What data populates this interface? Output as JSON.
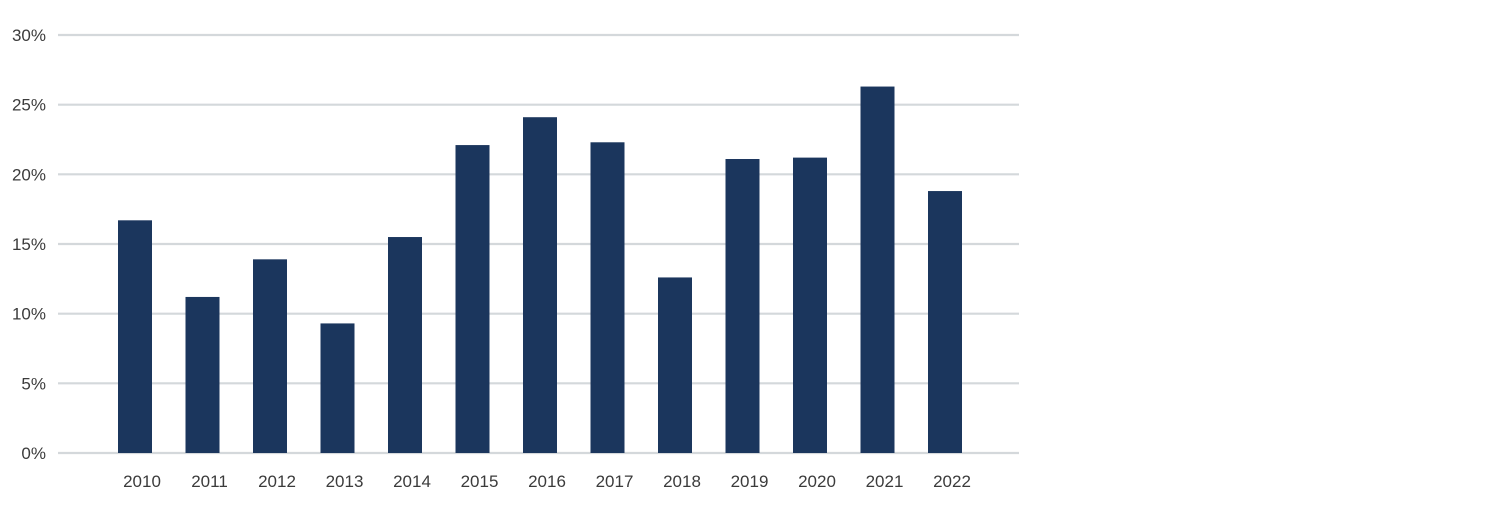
{
  "chart_data": {
    "type": "bar",
    "categories": [
      "2010",
      "2011",
      "2012",
      "2013",
      "2014",
      "2015",
      "2016",
      "2017",
      "2018",
      "2019",
      "2020",
      "2021",
      "2022"
    ],
    "values": [
      16.7,
      11.2,
      13.9,
      9.3,
      15.5,
      22.1,
      24.1,
      22.3,
      12.6,
      21.1,
      21.2,
      26.3,
      18.8
    ],
    "y_ticks": [
      0,
      5,
      10,
      15,
      20,
      25,
      30
    ],
    "y_tick_suffix": "%",
    "ylim": [
      0,
      30
    ],
    "grid": true,
    "legend": "none",
    "bar_color": "#1b365d",
    "grid_color": "#d4d8db",
    "title": "",
    "xlabel": "",
    "ylabel": ""
  }
}
